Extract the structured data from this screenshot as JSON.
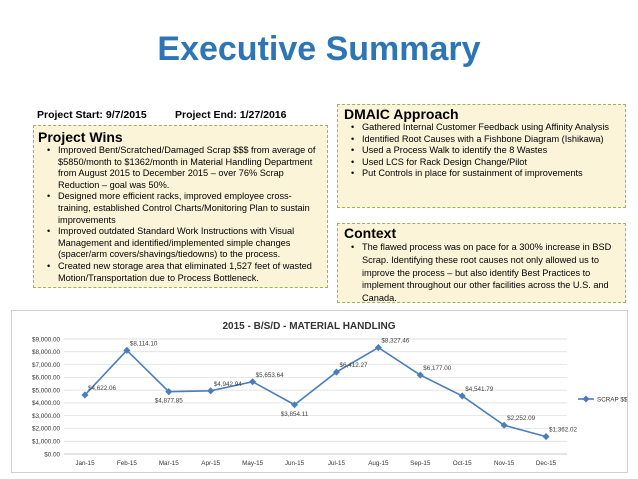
{
  "slide": {
    "title": "Executive Summary",
    "project_start": "Project Start: 9/7/2015",
    "project_end": "Project End: 1/27/2016"
  },
  "wins": {
    "heading": "Project Wins",
    "items": [
      "Improved Bent/Scratched/Damaged Scrap $$$ from average of $5850/month to $1362/month in Material Handling Department from August 2015 to December 2015 – over 76% Scrap Reduction – goal was 50%.",
      "Designed more efficient racks, improved employee cross-training, established Control Charts/Monitoring Plan to sustain improvements",
      "Improved outdated Standard Work Instructions with Visual Management and identified/implemented simple changes (spacer/arm covers/shavings/tiedowns) to the process.",
      "Created new storage area that eliminated 1,527 feet of wasted Motion/Transportation due to Process Bottleneck."
    ]
  },
  "dmaic": {
    "heading": "DMAIC Approach",
    "items": [
      "Gathered Internal Customer Feedback using Affinity Analysis",
      "Identified Root Causes with a Fishbone Diagram (Ishikawa)",
      "Used a Process Walk to identify the 8 Wastes",
      "Used LCS for Rack Design Change/Pilot",
      "Put Controls in place for sustainment of improvements"
    ]
  },
  "context": {
    "heading": "Context",
    "items": [
      "The flawed process was on pace for a 300% increase in BSD Scrap. Identifying these root causes not only allowed us to improve the process – but also identify Best Practices to implement throughout our other facilities across the U.S. and Canada."
    ]
  },
  "colors": {
    "title": "#2e75b6",
    "box_fill": "#fcf4d9",
    "box_border": "#9bb55a",
    "series": "#4a7ebb"
  },
  "chart_data": {
    "type": "line",
    "title": "2015 - B/S/D - MATERIAL HANDLING",
    "xlabel": "",
    "ylabel": "",
    "categories": [
      "Jan-15",
      "Feb-15",
      "Mar-15",
      "Apr-15",
      "May-15",
      "Jun-15",
      "Jul-15",
      "Aug-15",
      "Sep-15",
      "Oct-15",
      "Nov-15",
      "Dec-15"
    ],
    "series": [
      {
        "name": "SCRAP $$",
        "values": [
          4622.06,
          8114.1,
          4877.85,
          4942.94,
          5653.64,
          3854.11,
          6412.27,
          8327.46,
          6177.0,
          4541.79,
          2252.09,
          1362.02
        ],
        "labels": [
          "$4,622.06",
          "$8,114.10",
          "$4,877.85",
          "$4,942.94",
          "$5,653.64",
          "$3,854.11",
          "$6,412.27",
          "$8,327.46",
          "$6,177.00",
          "$4,541.79",
          "$2,252.09",
          "$1,362.02"
        ]
      }
    ],
    "ylim": [
      0,
      9000
    ],
    "yticks": [
      0,
      1000,
      2000,
      3000,
      4000,
      5000,
      6000,
      7000,
      8000,
      9000
    ],
    "ytick_labels": [
      "$0.00",
      "$1,000.00",
      "$2,000.00",
      "$3,000.00",
      "$4,000.00",
      "$5,000.00",
      "$6,000.00",
      "$7,000.00",
      "$8,000.00",
      "$9,000.00"
    ],
    "grid": true,
    "legend": "right"
  }
}
